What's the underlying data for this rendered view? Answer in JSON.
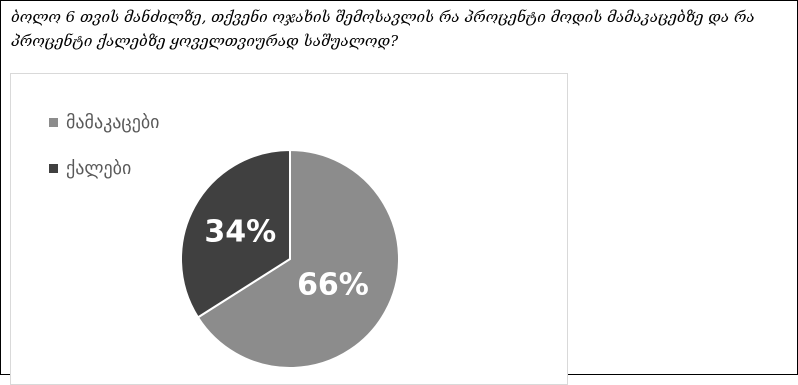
{
  "question": {
    "text": "ბოლო 6 თვის მანძილზე, თქვენი ოჯახის შემოსავლის რა პროცენტი მოდის მამაკაცებზე და რა პროცენტი ქალებზე ყოველთვიურად საშუალოდ?"
  },
  "chart_data": {
    "type": "pie",
    "title": "",
    "legend_position": "top-left",
    "series": [
      {
        "name": "მამაკაცები",
        "value": 66,
        "label": "66%",
        "color": "#8c8c8c"
      },
      {
        "name": "ქალები",
        "value": 34,
        "label": "34%",
        "color": "#404040"
      }
    ]
  }
}
